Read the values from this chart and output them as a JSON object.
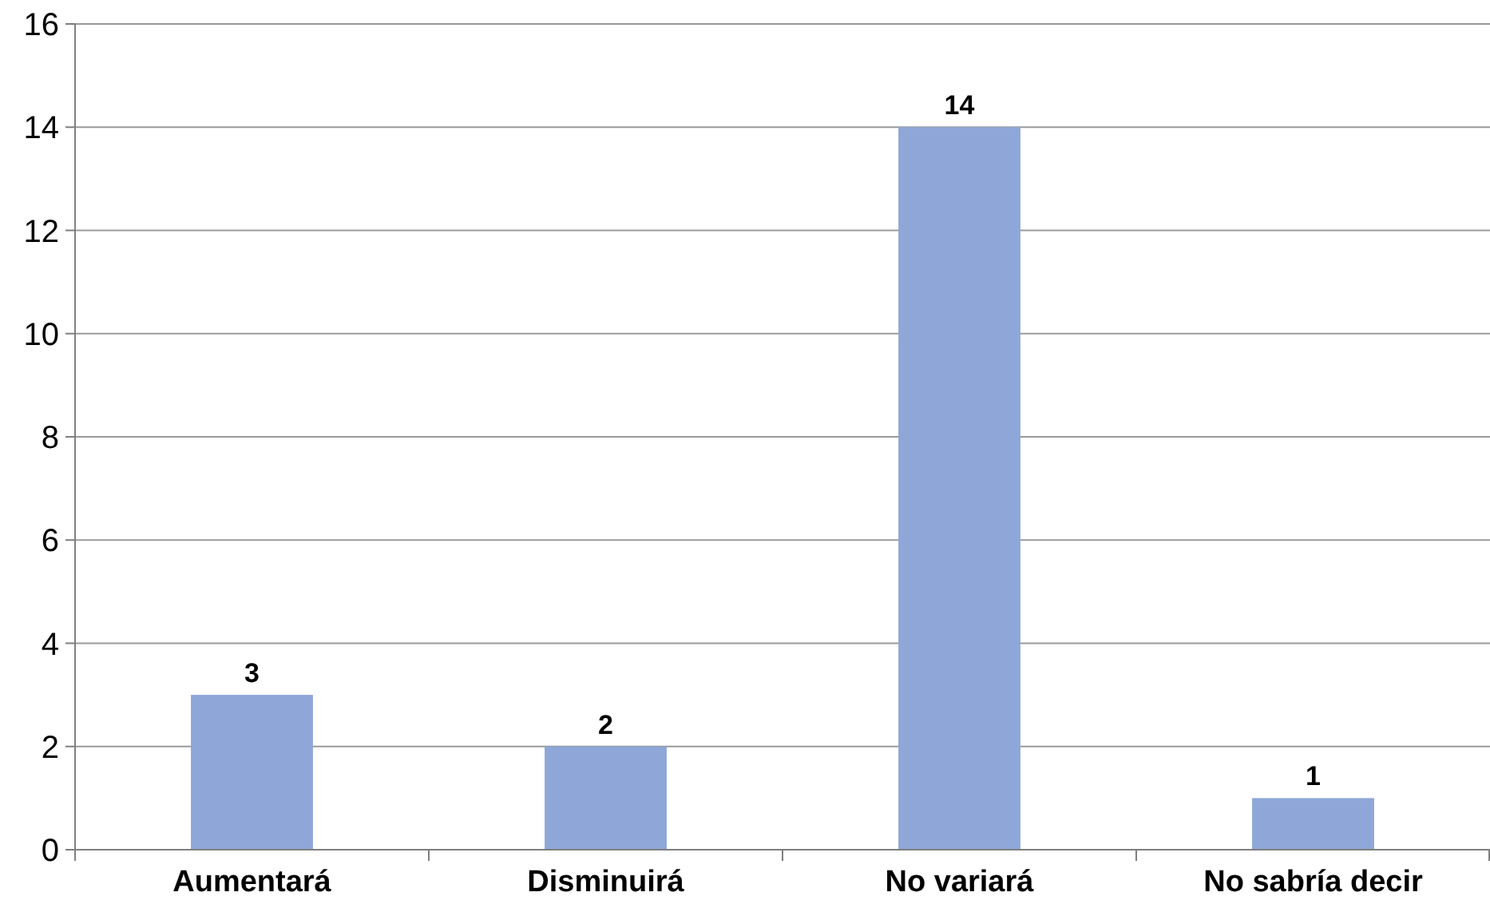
{
  "chart_data": {
    "type": "bar",
    "categories": [
      "Aumentará",
      "Disminuirá",
      "No variará",
      "No sabría decir"
    ],
    "values": [
      3,
      2,
      14,
      1
    ],
    "color": "#8ea7d8",
    "ylim": [
      0,
      16
    ],
    "yticks": [
      0,
      2,
      4,
      6,
      8,
      10,
      12,
      14,
      16
    ],
    "grid": "y",
    "data_labels": true
  }
}
